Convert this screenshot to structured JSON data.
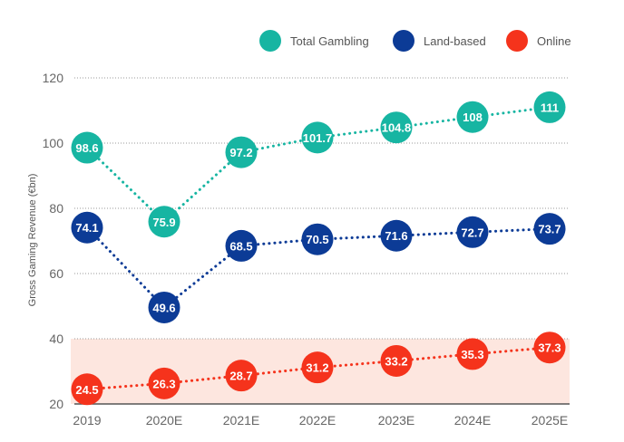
{
  "chart_data": {
    "type": "line",
    "title": "",
    "xlabel": "",
    "ylabel": "Gross Gaming Revenue (€bn)",
    "ylim": [
      20,
      120
    ],
    "yticks": [
      20,
      40,
      60,
      80,
      100,
      120
    ],
    "grid": true,
    "legend_placement": "top-right",
    "highlight_band": {
      "from": 20,
      "to": 40,
      "color": "#fde6df"
    },
    "categories": [
      "2019",
      "2020E",
      "2021E",
      "2022E",
      "2023E",
      "2024E",
      "2025E"
    ],
    "series": [
      {
        "name": "Total Gambling",
        "color": "#17b5a2",
        "values": [
          98.6,
          75.9,
          97.2,
          101.7,
          104.8,
          108,
          111
        ],
        "labels": [
          "98.6",
          "75.9",
          "97.2",
          "101.7",
          "104.8",
          "108",
          "111"
        ]
      },
      {
        "name": "Land-based",
        "color": "#0c3b96",
        "values": [
          74.1,
          49.6,
          68.5,
          70.5,
          71.6,
          72.7,
          73.7
        ],
        "labels": [
          "74.1",
          "49.6",
          "68.5",
          "70.5",
          "71.6",
          "72.7",
          "73.7"
        ]
      },
      {
        "name": "Online",
        "color": "#f5331c",
        "values": [
          24.5,
          26.3,
          28.7,
          31.2,
          33.2,
          35.3,
          37.3
        ],
        "labels": [
          "24.5",
          "26.3",
          "28.7",
          "31.2",
          "33.2",
          "35.3",
          "37.3"
        ]
      }
    ]
  }
}
